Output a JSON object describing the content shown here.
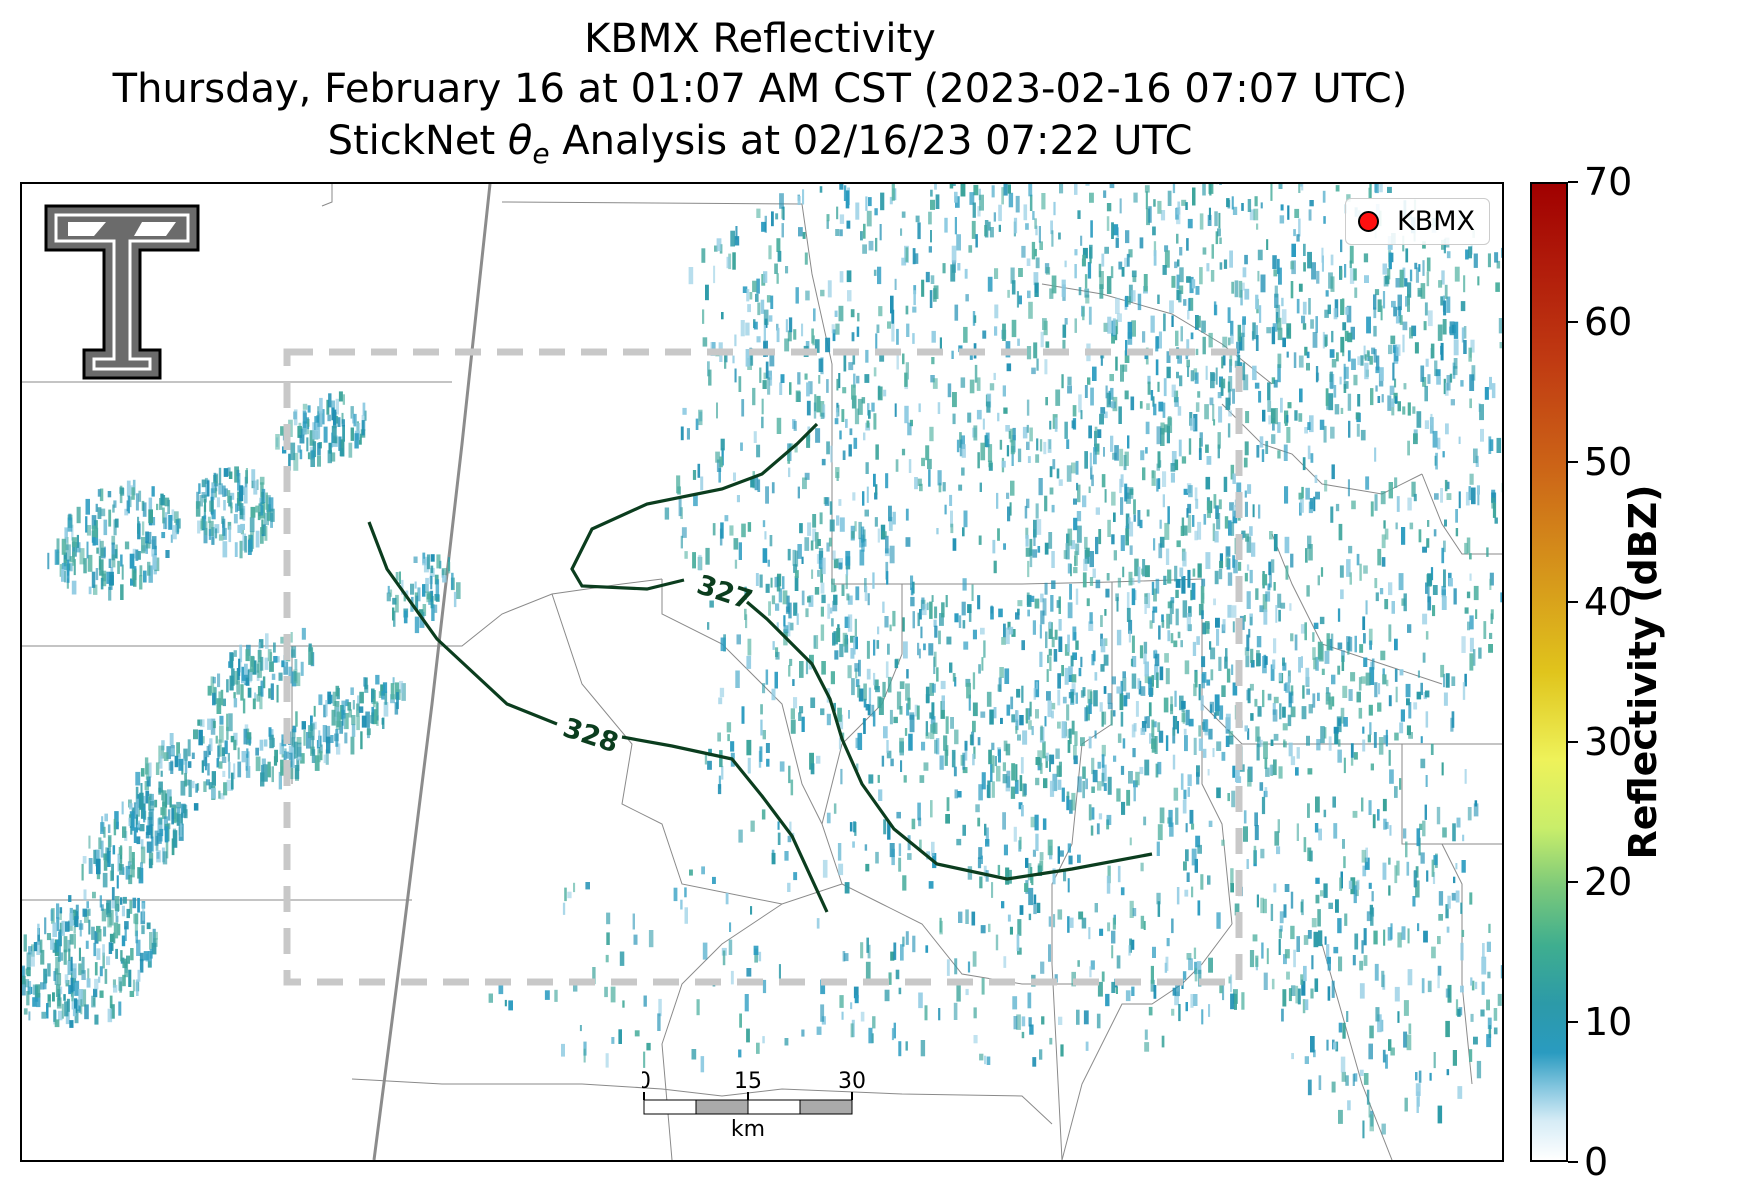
{
  "title": {
    "line1": "KBMX Reflectivity",
    "line2": "Thursday, February 16 at 01:07 AM CST (2023-02-16 07:07 UTC)",
    "line3_prefix": "StickNet ",
    "line3_symbol": "θ",
    "line3_subscript": "e",
    "line3_suffix": " Analysis at 02/16/23 07:22 UTC"
  },
  "legend": {
    "label": "KBMX",
    "marker_color": "#ff1010"
  },
  "contours": [
    {
      "label": "327",
      "color": "#0b3d1e"
    },
    {
      "label": "328",
      "color": "#0b3d1e"
    }
  ],
  "scale_bar": {
    "unit": "km",
    "ticks": [
      "0",
      "15",
      "30"
    ]
  },
  "colorbar": {
    "label": "Reflectivity (dBZ)",
    "ticks": [
      "0",
      "10",
      "20",
      "30",
      "40",
      "50",
      "60",
      "70"
    ],
    "range": [
      0,
      70
    ]
  },
  "analysis_box": {
    "color": "#c8c8c8",
    "style": "dashed"
  },
  "logo": {
    "icon": "double-t-logo-icon"
  }
}
